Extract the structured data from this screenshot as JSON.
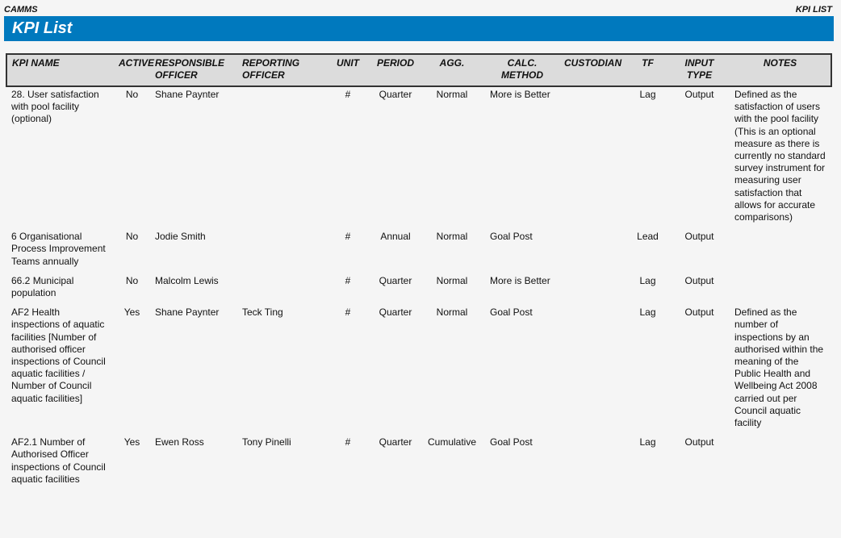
{
  "header": {
    "left": "CAMMS",
    "right": "KPI LIST",
    "title": "KPI List"
  },
  "columns": [
    "KPI NAME",
    "ACTIVE",
    "RESPONSIBLE OFFICER",
    "REPORTING OFFICER",
    "UNIT",
    "PERIOD",
    "AGG.",
    "CALC. METHOD",
    "CUSTODIAN",
    "TF",
    "INPUT TYPE",
    "NOTES"
  ],
  "rows": [
    [
      "28. User satisfaction with pool facility (optional)",
      "No",
      "Shane Paynter",
      "",
      "#",
      "Quarter",
      "Normal",
      "More is Better",
      "",
      "Lag",
      "Output",
      "Defined as the satisfaction of users with the pool facility (This is an optional measure as there is currently no standard survey instrument for measuring user satisfaction that allows for accurate comparisons)"
    ],
    [
      "6 Organisational Process Improvement Teams annually",
      "No",
      "Jodie Smith",
      "",
      "#",
      "Annual",
      "Normal",
      "Goal Post",
      "",
      "Lead",
      "Output",
      ""
    ],
    [
      "66.2 Municipal population",
      "No",
      "Malcolm Lewis",
      "",
      "#",
      "Quarter",
      "Normal",
      "More is Better",
      "",
      "Lag",
      "Output",
      ""
    ],
    [
      "AF2 Health inspections of aquatic facilities [Number of authorised officer inspections of Council aquatic facilities / Number of Council aquatic facilities]",
      "Yes",
      "Shane Paynter",
      "Teck Ting",
      "#",
      "Quarter",
      "Normal",
      "Goal Post",
      "",
      "Lag",
      "Output",
      "Defined as the number of inspections by an authorised within the meaning of the Public Health and Wellbeing Act 2008 carried out per Council aquatic facility"
    ],
    [
      "AF2.1 Number of Authorised Officer inspections of Council aquatic facilities",
      "Yes",
      "Ewen Ross",
      "Tony Pinelli",
      "#",
      "Quarter",
      "Cumulative",
      "Goal Post",
      "",
      "Lag",
      "Output",
      ""
    ]
  ],
  "colors": {
    "banner": "#0079be",
    "header_bg": "#dcdcdc"
  }
}
